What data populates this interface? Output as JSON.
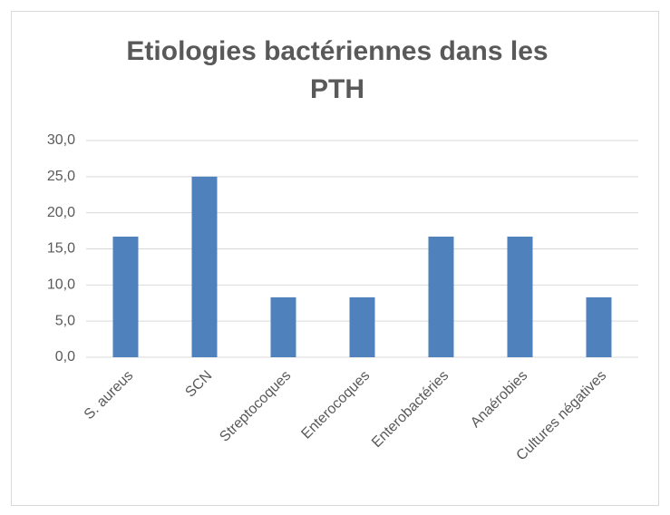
{
  "chart_data": {
    "type": "bar",
    "title": "Etiologies bactériennes dans les PTH",
    "categories": [
      "S. aureus",
      "SCN",
      "Streptocoques",
      "Enterocoques",
      "Enterobactéries",
      "Anaérobies",
      "Cultures négatives"
    ],
    "values": [
      16.7,
      25.0,
      8.3,
      8.3,
      16.7,
      16.7,
      8.3
    ],
    "color": "#4f81bd",
    "ylim": [
      0,
      30
    ],
    "yticks": [
      {
        "value": 0,
        "label": "0,0"
      },
      {
        "value": 5,
        "label": "5,0"
      },
      {
        "value": 10,
        "label": "10,0"
      },
      {
        "value": 15,
        "label": "15,0"
      },
      {
        "value": 20,
        "label": "20,0"
      },
      {
        "value": 25,
        "label": "25,0"
      },
      {
        "value": 30,
        "label": "30,0"
      }
    ],
    "grid": true
  }
}
